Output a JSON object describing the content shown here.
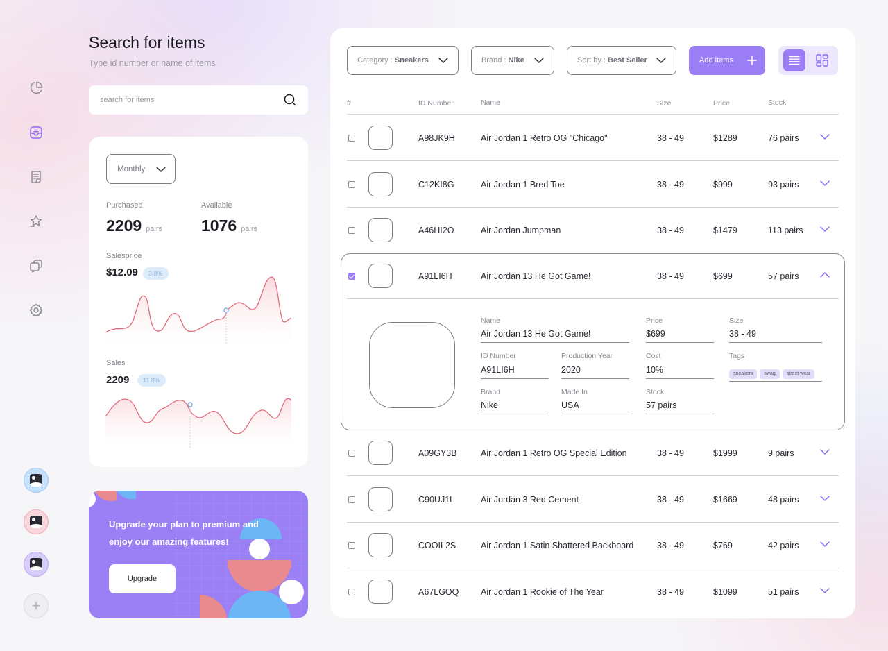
{
  "header": {
    "title": "Search for items",
    "subtitle": "Type id number or name of items",
    "search_placeholder": "search for items"
  },
  "sidebar": {
    "items": [
      {
        "icon": "pie-chart-icon",
        "active": false
      },
      {
        "icon": "inbox-icon",
        "active": true
      },
      {
        "icon": "receipt-icon",
        "active": false
      },
      {
        "icon": "star-badge-icon",
        "active": false
      },
      {
        "icon": "chat-icon",
        "active": false
      },
      {
        "icon": "gear-icon",
        "active": false
      }
    ],
    "avatars": [
      {
        "ring": "#9cc8f4",
        "fill": "#c5e0fa"
      },
      {
        "ring": "#f0a9b4",
        "fill": "#f9d7dd"
      },
      {
        "ring": "#b9a5f5",
        "fill": "#d8ccfb"
      }
    ],
    "add_symbol": "+"
  },
  "stats": {
    "period": "Monthly",
    "purchased_label": "Purchased",
    "purchased_value": "2209",
    "purchased_unit": "pairs",
    "available_label": "Available",
    "available_value": "1076",
    "available_unit": "pairs",
    "salesprice_label": "Salesprice",
    "salesprice_value": "$12.09",
    "salesprice_change": "3.8%",
    "sales_label": "Sales",
    "sales_value": "2209",
    "sales_change": "11.8%",
    "line_color": "#e26b7a"
  },
  "upgrade": {
    "text": "Upgrade your plan to premium and enjoy our amazing features!",
    "button": "Upgrade"
  },
  "toolbar": {
    "category_label": "Category : ",
    "category_value": "Sneakers",
    "brand_label": "Brand : ",
    "brand_value": "Nike",
    "sort_label": "Sort by : ",
    "sort_value": "Best Seller",
    "add_label": "Add items",
    "accent": "#9b7ef5"
  },
  "table": {
    "columns": {
      "num": "#",
      "id": "ID Number",
      "name": "Name",
      "size": "Size",
      "price": "Price",
      "stock": "Stock"
    },
    "rows": [
      {
        "id": "A98JK9H",
        "name": "Air Jordan 1 Retro OG \"Chicago\"",
        "size": "38 - 49",
        "price": "$1289",
        "stock": "76 pairs",
        "checked": false,
        "expanded": false
      },
      {
        "id": "C12KI8G",
        "name": "Air Jordan 1 Bred Toe",
        "size": "38 - 49",
        "price": "$999",
        "stock": "93 pairs",
        "checked": false,
        "expanded": false
      },
      {
        "id": "A46HI2O",
        "name": "Air Jordan Jumpman",
        "size": "38 - 49",
        "price": "$1479",
        "stock": "113 pairs",
        "checked": false,
        "expanded": false
      },
      {
        "id": "A91LI6H",
        "name": "Air Jordan 13 He Got Game!",
        "size": "38 - 49",
        "price": "$699",
        "stock": "57 pairs",
        "checked": true,
        "expanded": true
      },
      {
        "id": "A09GY3B",
        "name": "Air Jordan 1 Retro OG Special Edition",
        "size": "38 - 49",
        "price": "$1999",
        "stock": "9 pairs",
        "checked": false,
        "expanded": false
      },
      {
        "id": "C90UJ1L",
        "name": "Air Jordan 3 Red Cement",
        "size": "38 - 49",
        "price": "$1669",
        "stock": "48 pairs",
        "checked": false,
        "expanded": false
      },
      {
        "id": "COOIL2S",
        "name": "Air Jordan 1 Satin Shattered Backboard",
        "size": "38 - 49",
        "price": "$769",
        "stock": "42 pairs",
        "checked": false,
        "expanded": false
      },
      {
        "id": "A67LGOQ",
        "name": "Air Jordan 1 Rookie of The Year",
        "size": "38 - 49",
        "price": "$1099",
        "stock": "51 pairs",
        "checked": false,
        "expanded": false
      }
    ]
  },
  "detail": {
    "name_label": "Name",
    "name": "Air Jordan 13 He Got Game!",
    "price_label": "Price",
    "price": "$699",
    "size_label": "Size",
    "size": "38 - 49",
    "id_label": "ID Number",
    "id": "A91LI6H",
    "year_label": "Production Year",
    "year": "2020",
    "cost_label": "Cost",
    "cost": "10%",
    "tags_label": "Tags",
    "tags": [
      "sneakers",
      "swag",
      "street wear"
    ],
    "brand_label": "Brand",
    "brand": "Nike",
    "made_label": "Made In",
    "made": "USA",
    "stock_label": "Stock",
    "stock": "57 pairs"
  }
}
